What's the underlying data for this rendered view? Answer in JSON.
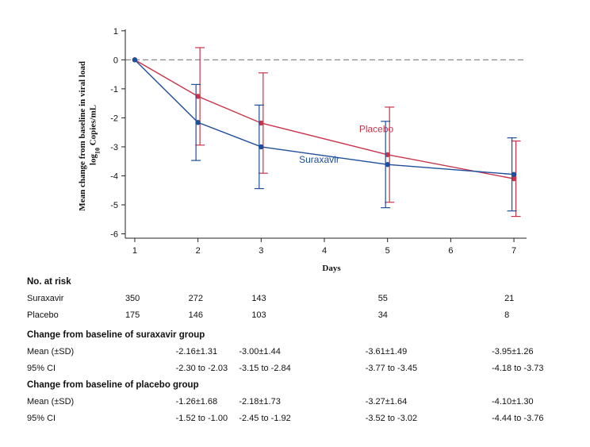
{
  "chart_data": {
    "type": "line",
    "xlabel": "Days",
    "ylabel_line1": "Mean change from baseline in viral load",
    "ylabel_line2_base": "log",
    "ylabel_line2_sub": "10",
    "ylabel_line2_rest": " Copies/mL",
    "xlim": [
      0.85,
      7.2
    ],
    "ylim": [
      -6.15,
      1.05
    ],
    "x_ticks": [
      1,
      2,
      3,
      4,
      5,
      6,
      7
    ],
    "y_ticks": [
      1,
      0,
      -1,
      -2,
      -3,
      -4,
      -5,
      -6
    ],
    "reference_line_y": 0,
    "series": [
      {
        "name": "Placebo",
        "color": "#c8344a",
        "x": [
          1,
          2,
          3,
          5,
          7
        ],
        "y": [
          0,
          -1.26,
          -2.18,
          -3.27,
          -4.1
        ],
        "err_low": [
          0,
          -2.94,
          -3.91,
          -4.91,
          -5.4
        ],
        "err_high": [
          0,
          0.42,
          -0.45,
          -1.63,
          -2.8
        ],
        "label_x": 4.55,
        "label_y": -2.5
      },
      {
        "name": "Suraxavir",
        "color": "#1f4e9a",
        "x": [
          1,
          2,
          3,
          5,
          7
        ],
        "y": [
          0,
          -2.16,
          -3.0,
          -3.61,
          -3.95
        ],
        "err_low": [
          0,
          -3.47,
          -4.44,
          -5.1,
          -5.21
        ],
        "err_high": [
          0,
          -0.85,
          -1.56,
          -2.12,
          -2.69
        ],
        "label_x": 3.6,
        "label_y": -3.55
      }
    ]
  },
  "table": {
    "col_days": [
      1,
      2,
      3,
      5,
      7
    ],
    "at_risk_title": "No. at risk",
    "at_risk": [
      {
        "label": "Suraxavir",
        "values": [
          "350",
          "272",
          "143",
          "55",
          "21"
        ]
      },
      {
        "label": "Placebo",
        "values": [
          "175",
          "146",
          "103",
          "34",
          "8"
        ]
      }
    ],
    "groups": [
      {
        "title": "Change from baseline of suraxavir group",
        "rows": [
          {
            "label": "Mean (±SD)",
            "values": [
              "-2.16±1.31",
              "-3.00±1.44",
              "-3.61±1.49",
              "-3.95±1.26"
            ]
          },
          {
            "label": "95% CI",
            "values": [
              "-2.30 to -2.03",
              "-3.15 to -2.84",
              "-3.77 to -3.45",
              "-4.18 to -3.73"
            ]
          }
        ]
      },
      {
        "title": "Change from baseline of placebo group",
        "rows": [
          {
            "label": "Mean (±SD)",
            "values": [
              "-1.26±1.68",
              "-2.18±1.73",
              "-3.27±1.64",
              "-4.10±1.30"
            ]
          },
          {
            "label": "95% CI",
            "values": [
              "-1.52 to -1.00",
              "-2.45 to -1.92",
              "-3.52 to -3.02",
              "-4.44 to -3.76"
            ]
          }
        ]
      }
    ]
  }
}
